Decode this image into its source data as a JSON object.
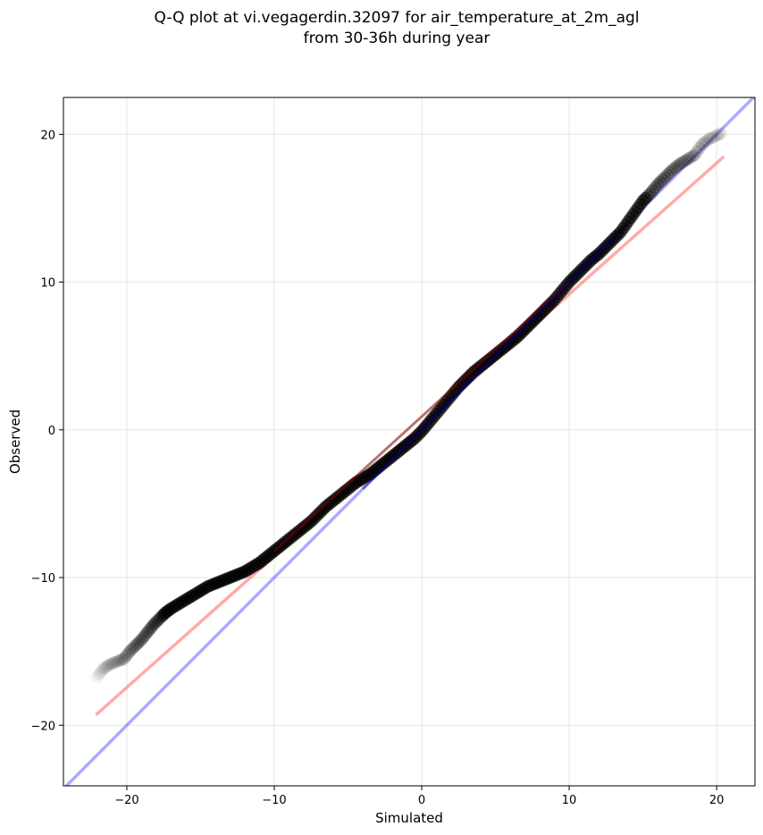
{
  "chart_data": {
    "type": "scatter",
    "title_lines": [
      "Q-Q plot at vi.vegagerdin.32097 for air_temperature_at_2m_agl",
      "from 30-36h during year"
    ],
    "xlabel": "Simulated",
    "ylabel": "Observed",
    "xlim": [
      -24.3,
      22.6
    ],
    "ylim": [
      -24.1,
      22.5
    ],
    "xticks": [
      -20,
      -10,
      0,
      10,
      20
    ],
    "yticks": [
      -20,
      -10,
      0,
      10,
      20
    ],
    "xtick_labels": [
      "−20",
      "−10",
      "0",
      "10",
      "20"
    ],
    "ytick_labels": [
      "−20",
      "−10",
      "0",
      "10",
      "20"
    ],
    "grid": true,
    "identity_line": {
      "x": [
        -24.3,
        22.6
      ],
      "y": [
        -24.3,
        22.6
      ],
      "color": "#0000ff",
      "alpha": 0.33
    },
    "fit_line": {
      "x": [
        -22.1,
        20.5
      ],
      "y": [
        -19.3,
        18.5
      ],
      "color": "#ff0000",
      "alpha": 0.33
    },
    "point_color": "#000000",
    "quantiles": [
      [
        -22.0,
        -16.7
      ],
      [
        -21.6,
        -16.2
      ],
      [
        -21.2,
        -15.9
      ],
      [
        -20.7,
        -15.7
      ],
      [
        -20.2,
        -15.5
      ],
      [
        -19.8,
        -15.0
      ],
      [
        -19.4,
        -14.6
      ],
      [
        -19.0,
        -14.2
      ],
      [
        -18.6,
        -13.7
      ],
      [
        -18.2,
        -13.2
      ],
      [
        -17.8,
        -12.8
      ],
      [
        -17.4,
        -12.4
      ],
      [
        -17.0,
        -12.1
      ],
      [
        -16.5,
        -11.8
      ],
      [
        -16.0,
        -11.5
      ],
      [
        -15.5,
        -11.2
      ],
      [
        -15.0,
        -10.9
      ],
      [
        -14.5,
        -10.6
      ],
      [
        -14.0,
        -10.4
      ],
      [
        -13.5,
        -10.2
      ],
      [
        -13.0,
        -10.0
      ],
      [
        -12.5,
        -9.8
      ],
      [
        -12.0,
        -9.6
      ],
      [
        -11.5,
        -9.3
      ],
      [
        -11.0,
        -9.0
      ],
      [
        -10.5,
        -8.6
      ],
      [
        -10.0,
        -8.2
      ],
      [
        -9.5,
        -7.8
      ],
      [
        -9.0,
        -7.4
      ],
      [
        -8.5,
        -7.0
      ],
      [
        -8.0,
        -6.6
      ],
      [
        -7.5,
        -6.2
      ],
      [
        -7.0,
        -5.7
      ],
      [
        -6.5,
        -5.2
      ],
      [
        -6.0,
        -4.8
      ],
      [
        -5.5,
        -4.4
      ],
      [
        -5.0,
        -4.0
      ],
      [
        -4.5,
        -3.6
      ],
      [
        -4.0,
        -3.3
      ],
      [
        -3.5,
        -3.0
      ],
      [
        -3.0,
        -2.6
      ],
      [
        -2.5,
        -2.2
      ],
      [
        -2.0,
        -1.8
      ],
      [
        -1.5,
        -1.4
      ],
      [
        -1.0,
        -1.0
      ],
      [
        -0.5,
        -0.6
      ],
      [
        0.0,
        -0.1
      ],
      [
        0.5,
        0.5
      ],
      [
        1.0,
        1.1
      ],
      [
        1.5,
        1.7
      ],
      [
        2.0,
        2.3
      ],
      [
        2.5,
        2.9
      ],
      [
        3.0,
        3.4
      ],
      [
        3.5,
        3.9
      ],
      [
        4.0,
        4.3
      ],
      [
        4.5,
        4.7
      ],
      [
        5.0,
        5.1
      ],
      [
        5.5,
        5.5
      ],
      [
        6.0,
        5.9
      ],
      [
        6.5,
        6.3
      ],
      [
        7.0,
        6.8
      ],
      [
        7.5,
        7.3
      ],
      [
        8.0,
        7.8
      ],
      [
        8.5,
        8.3
      ],
      [
        9.0,
        8.8
      ],
      [
        9.5,
        9.4
      ],
      [
        10.0,
        10.0
      ],
      [
        10.5,
        10.5
      ],
      [
        11.0,
        11.0
      ],
      [
        11.5,
        11.5
      ],
      [
        12.0,
        11.9
      ],
      [
        12.5,
        12.4
      ],
      [
        13.0,
        12.9
      ],
      [
        13.5,
        13.4
      ],
      [
        14.0,
        14.1
      ],
      [
        14.5,
        14.8
      ],
      [
        15.0,
        15.5
      ],
      [
        15.5,
        16.0
      ],
      [
        16.0,
        16.6
      ],
      [
        16.5,
        17.1
      ],
      [
        17.0,
        17.6
      ],
      [
        17.5,
        18.0
      ],
      [
        18.0,
        18.3
      ],
      [
        18.5,
        18.6
      ],
      [
        19.0,
        19.3
      ],
      [
        19.5,
        19.7
      ],
      [
        20.0,
        19.9
      ],
      [
        20.3,
        20.1
      ]
    ]
  }
}
